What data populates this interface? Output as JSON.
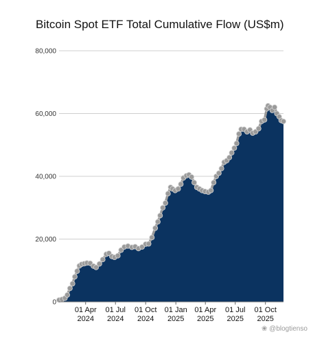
{
  "chart_data": {
    "type": "area",
    "title": "Bitcoin Spot ETF Total Cumulative Flow (US$m)",
    "xlabel": "",
    "ylabel": "",
    "ylim": [
      0,
      80000
    ],
    "y_ticks": [
      "0",
      "20,000",
      "40,000",
      "60,000",
      "80,000"
    ],
    "y_tick_values": [
      0,
      20000,
      40000,
      60000,
      80000
    ],
    "x_ticks": [
      {
        "date": "2024-04-01",
        "line1": "01 Apr",
        "line2": "2024"
      },
      {
        "date": "2024-07-01",
        "line1": "01 Jul",
        "line2": "2024"
      },
      {
        "date": "2024-10-01",
        "line1": "01 Oct",
        "line2": "2024"
      },
      {
        "date": "2025-01-01",
        "line1": "01 Jan",
        "line2": "2025"
      },
      {
        "date": "2025-04-01",
        "line1": "01 Apr",
        "line2": "2025"
      },
      {
        "date": "2025-07-01",
        "line1": "01 Jul",
        "line2": "2025"
      },
      {
        "date": "2025-10-01",
        "line1": "01 Oct",
        "line2": "2025"
      }
    ],
    "xlim": [
      "2024-01-11",
      "2025-11-25"
    ],
    "grid": "horizontal",
    "fill_color": "#0b3360",
    "marker_color": "#9a9a9a",
    "series": [
      {
        "points": [
          [
            "2024-01-11",
            600
          ],
          [
            "2024-01-20",
            800
          ],
          [
            "2024-01-29",
            1200
          ],
          [
            "2024-02-05",
            2200
          ],
          [
            "2024-02-13",
            4300
          ],
          [
            "2024-02-21",
            5800
          ],
          [
            "2024-02-28",
            8000
          ],
          [
            "2024-03-06",
            9800
          ],
          [
            "2024-03-13",
            11500
          ],
          [
            "2024-03-20",
            12000
          ],
          [
            "2024-03-28",
            12200
          ],
          [
            "2024-04-05",
            12400
          ],
          [
            "2024-04-15",
            12300
          ],
          [
            "2024-04-25",
            11400
          ],
          [
            "2024-05-03",
            11000
          ],
          [
            "2024-05-13",
            12100
          ],
          [
            "2024-05-23",
            13500
          ],
          [
            "2024-06-03",
            15200
          ],
          [
            "2024-06-11",
            15500
          ],
          [
            "2024-06-20",
            14500
          ],
          [
            "2024-06-28",
            14200
          ],
          [
            "2024-07-08",
            14700
          ],
          [
            "2024-07-18",
            16500
          ],
          [
            "2024-07-28",
            17500
          ],
          [
            "2024-08-08",
            17800
          ],
          [
            "2024-08-20",
            17400
          ],
          [
            "2024-08-30",
            17600
          ],
          [
            "2024-09-09",
            17000
          ],
          [
            "2024-09-20",
            17500
          ],
          [
            "2024-10-01",
            18400
          ],
          [
            "2024-10-10",
            18500
          ],
          [
            "2024-10-20",
            20500
          ],
          [
            "2024-10-30",
            23500
          ],
          [
            "2024-11-07",
            25500
          ],
          [
            "2024-11-14",
            27500
          ],
          [
            "2024-11-22",
            30000
          ],
          [
            "2024-11-30",
            31500
          ],
          [
            "2024-12-08",
            34500
          ],
          [
            "2024-12-16",
            36500
          ],
          [
            "2024-12-22",
            36000
          ],
          [
            "2024-12-30",
            35500
          ],
          [
            "2025-01-08",
            36000
          ],
          [
            "2025-01-16",
            37500
          ],
          [
            "2025-01-24",
            39500
          ],
          [
            "2025-02-02",
            40200
          ],
          [
            "2025-02-10",
            40500
          ],
          [
            "2025-02-18",
            39800
          ],
          [
            "2025-02-26",
            38000
          ],
          [
            "2025-03-06",
            36500
          ],
          [
            "2025-03-14",
            36000
          ],
          [
            "2025-03-22",
            35500
          ],
          [
            "2025-03-31",
            35200
          ],
          [
            "2025-04-10",
            35000
          ],
          [
            "2025-04-18",
            35500
          ],
          [
            "2025-04-26",
            38000
          ],
          [
            "2025-05-04",
            40000
          ],
          [
            "2025-05-12",
            41000
          ],
          [
            "2025-05-20",
            42500
          ],
          [
            "2025-05-28",
            44500
          ],
          [
            "2025-06-05",
            45000
          ],
          [
            "2025-06-13",
            46000
          ],
          [
            "2025-06-20",
            47500
          ],
          [
            "2025-06-28",
            49000
          ],
          [
            "2025-07-05",
            50500
          ],
          [
            "2025-07-12",
            53500
          ],
          [
            "2025-07-19",
            55000
          ],
          [
            "2025-07-28",
            55000
          ],
          [
            "2025-08-06",
            54200
          ],
          [
            "2025-08-15",
            54800
          ],
          [
            "2025-08-23",
            53800
          ],
          [
            "2025-09-01",
            54200
          ],
          [
            "2025-09-10",
            55200
          ],
          [
            "2025-09-19",
            57500
          ],
          [
            "2025-09-28",
            58000
          ],
          [
            "2025-10-05",
            61500
          ],
          [
            "2025-10-09",
            62500
          ],
          [
            "2025-10-15",
            62000
          ],
          [
            "2025-10-22",
            61000
          ],
          [
            "2025-10-29",
            62000
          ],
          [
            "2025-11-05",
            60000
          ],
          [
            "2025-11-12",
            59000
          ],
          [
            "2025-11-18",
            57800
          ],
          [
            "2025-11-25",
            57500
          ]
        ]
      }
    ]
  },
  "watermark": "@blogtienso"
}
